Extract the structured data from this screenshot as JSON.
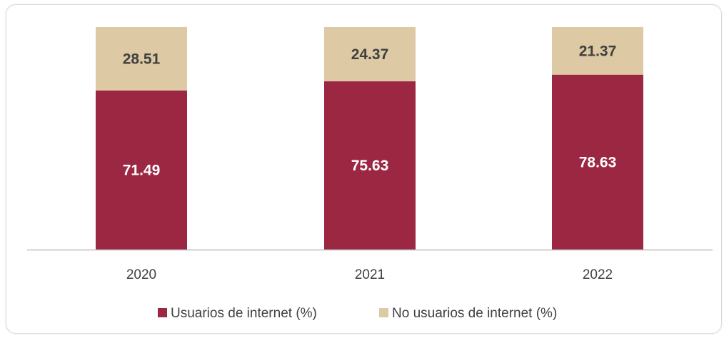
{
  "chart_data": {
    "type": "bar",
    "stacked": true,
    "categories": [
      "2020",
      "2021",
      "2022"
    ],
    "series": [
      {
        "name": "Usuarios de internet (%)",
        "values": [
          71.49,
          75.63,
          78.63
        ],
        "labels": [
          "71.49",
          "75.63",
          "78.63"
        ],
        "color": "#9B2743",
        "label_color": "#ffffff"
      },
      {
        "name": "No usuarios de internet (%)",
        "values": [
          28.51,
          24.37,
          21.37
        ],
        "labels": [
          "28.51",
          "24.37",
          "21.37"
        ],
        "color": "#DDC9A3",
        "label_color": "#404040"
      }
    ],
    "ylim": [
      0,
      100
    ],
    "grid": false,
    "legend_position": "bottom",
    "axis_color": "#bfbfbf"
  }
}
